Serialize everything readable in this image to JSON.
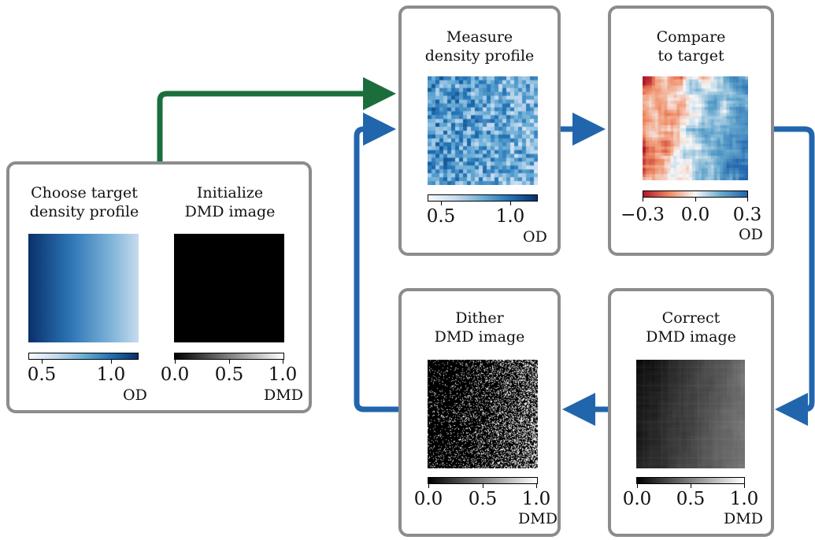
{
  "colors": {
    "box_border": "#8c8c8c",
    "arrow_green": "#1b6e3c",
    "arrow_blue": "#2166ac",
    "blues_dark": "#08306b",
    "blues_light": "#deebf7",
    "red_dark": "#b2182b",
    "blue_dark": "#2166ac"
  },
  "start": {
    "target": {
      "title_line1": "Choose target",
      "title_line2": "density profile",
      "ticks": [
        "0.5",
        "1.0"
      ],
      "unit": "OD"
    },
    "init": {
      "title_line1": "Initialize",
      "title_line2": "DMD image",
      "ticks": [
        "0.0",
        "0.5",
        "1.0"
      ],
      "unit": "DMD"
    }
  },
  "measure": {
    "title_line1": "Measure",
    "title_line2": "density profile",
    "ticks": [
      "0.5",
      "1.0"
    ],
    "unit": "OD"
  },
  "compare": {
    "title_line1": "Compare",
    "title_line2": "to target",
    "ticks": [
      "−0.3",
      "0.0",
      "0.3"
    ],
    "unit": "OD"
  },
  "correct": {
    "title_line1": "Correct",
    "title_line2": "DMD image",
    "ticks": [
      "0.0",
      "0.5",
      "1.0"
    ],
    "unit": "DMD"
  },
  "dither": {
    "title_line1": "Dither",
    "title_line2": "DMD image",
    "ticks": [
      "0.0",
      "0.5",
      "1.0"
    ],
    "unit": "DMD"
  }
}
